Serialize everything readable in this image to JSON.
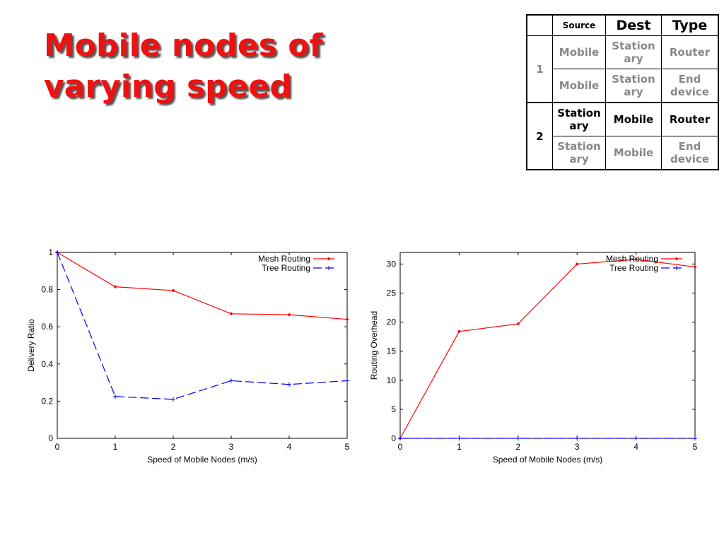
{
  "title": {
    "line1": "Mobile nodes of",
    "line2": "varying speed"
  },
  "table": {
    "headers": [
      "",
      "Source",
      "Dest",
      "Type"
    ],
    "groups": [
      {
        "label": "1",
        "rows": [
          {
            "source": "Mobile",
            "dest": "Station ary",
            "type": "Router",
            "highlight": false
          },
          {
            "source": "Mobile",
            "dest": "Station ary",
            "type": "End device",
            "highlight": false
          }
        ]
      },
      {
        "label": "2",
        "rows": [
          {
            "source": "Station ary",
            "dest": "Mobile",
            "type": "Router",
            "highlight": true
          },
          {
            "source": "Station ary",
            "dest": "Mobile",
            "type": "End device",
            "highlight": false
          }
        ]
      }
    ]
  },
  "chart_data": [
    {
      "type": "line",
      "xlabel": "Speed of Mobile Nodes (m/s)",
      "ylabel": "Delivery Ratio",
      "xlim": [
        0,
        5
      ],
      "ylim": [
        0,
        1
      ],
      "xticks": [
        "0",
        "1",
        "2",
        "3",
        "4",
        "5"
      ],
      "yticks": [
        "0",
        "0.2",
        "0.4",
        "0.6",
        "0.8",
        "1"
      ],
      "grid": false,
      "legend": "top-right",
      "x": [
        0,
        1,
        2,
        3,
        4,
        5
      ],
      "series": [
        {
          "name": "Mesh Routing",
          "values": [
            1.0,
            0.815,
            0.795,
            0.67,
            0.665,
            0.64
          ],
          "color": "#ff0000",
          "style": "solid",
          "marker": "diamond"
        },
        {
          "name": "Tree Routing",
          "values": [
            1.0,
            0.225,
            0.21,
            0.31,
            0.29,
            0.31
          ],
          "color": "#0000ff",
          "style": "dashed",
          "marker": "plus"
        }
      ]
    },
    {
      "type": "line",
      "xlabel": "Speed of Mobile Nodes (m/s)",
      "ylabel": "Routing Overhead",
      "xlim": [
        0,
        5
      ],
      "ylim": [
        0,
        32
      ],
      "xticks": [
        "0",
        "1",
        "2",
        "3",
        "4",
        "5"
      ],
      "yticks": [
        "0",
        "5",
        "10",
        "15",
        "20",
        "25",
        "30"
      ],
      "grid": false,
      "legend": "top-right",
      "x": [
        0,
        1,
        2,
        3,
        4,
        5
      ],
      "series": [
        {
          "name": "Mesh Routing",
          "values": [
            0,
            18.4,
            19.7,
            30.0,
            30.8,
            29.5
          ],
          "color": "#ff0000",
          "style": "solid",
          "marker": "diamond"
        },
        {
          "name": "Tree Routing",
          "values": [
            0,
            0,
            0,
            0,
            0,
            0
          ],
          "color": "#0000ff",
          "style": "dashed",
          "marker": "plus"
        }
      ]
    }
  ]
}
